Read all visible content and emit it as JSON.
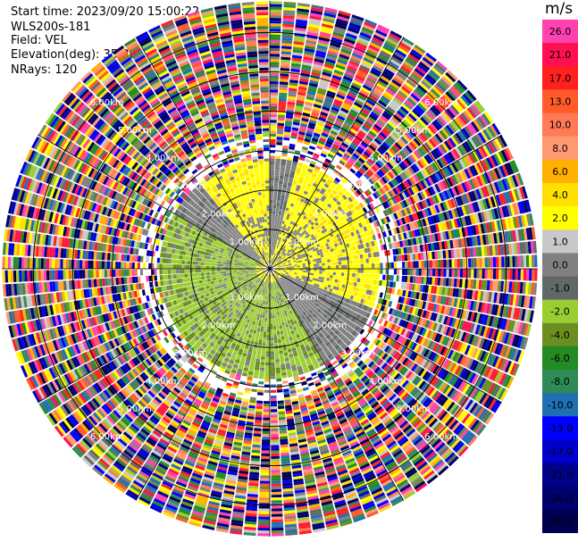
{
  "info": {
    "start_time": "Start time: 2023/09/20 15:00:22",
    "station": "WLS200s-181",
    "field": "Field: VEL",
    "elevation": "Elevation(deg): 35.30",
    "nrays": "NRays: 120"
  },
  "chart_data": {
    "type": "heatmap",
    "projection": "polar-ppi",
    "variable": "VEL",
    "unit": "m/s",
    "n_rays": 120,
    "range_rings_km": [
      "1.00km",
      "2.00km",
      "3.00km",
      "4.00km",
      "5.00km",
      "6.00km"
    ],
    "ring_values": [
      1,
      2,
      3,
      4,
      5,
      6
    ],
    "spokes_deg": [
      0,
      30,
      60,
      90,
      120,
      150,
      180,
      210,
      240,
      270,
      300,
      330
    ],
    "legend": {
      "title": "m/s",
      "ticks": [
        "26.0",
        "21.0",
        "17.0",
        "13.0",
        "10.0",
        "8.0",
        "6.0",
        "4.0",
        "2.0",
        "1.0",
        "0.0",
        "-1.0",
        "-2.0",
        "-4.0",
        "-6.0",
        "-8.0",
        "-10.0",
        "-13.0",
        "-17.0",
        "-21.0",
        "-26.0",
        "-30.0"
      ],
      "colors": [
        "#ff40b0",
        "#ff1050",
        "#ff2020",
        "#ff5a2a",
        "#ff7a55",
        "#ff9a70",
        "#ffb000",
        "#ffe000",
        "#ffff00",
        "#c8c8c8",
        "#808080",
        "#606868",
        "#9acd32",
        "#6b8e23",
        "#228b22",
        "#2e8b57",
        "#1f6fb4",
        "#0000ff",
        "#0000cd",
        "#00008b",
        "#000070",
        "#000050"
      ]
    }
  }
}
